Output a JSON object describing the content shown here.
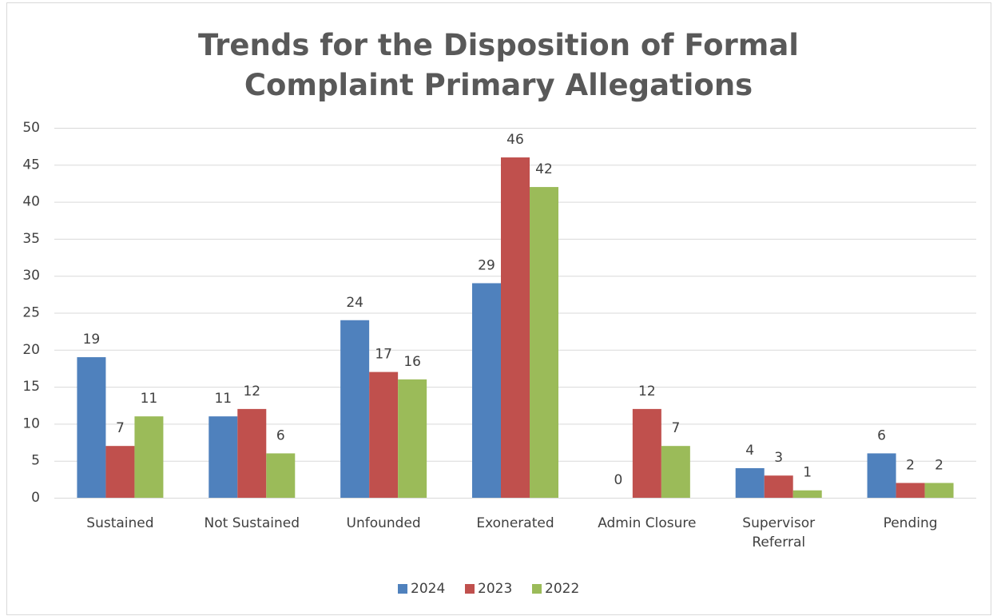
{
  "chart_data": {
    "type": "bar",
    "title": "Trends for the Disposition of Formal Complaint Primary Allegations",
    "categories": [
      "Sustained",
      "Not Sustained",
      "Unfounded",
      "Exonerated",
      "Admin Closure",
      "Supervisor Referral",
      "Pending"
    ],
    "series": [
      {
        "name": "2024",
        "color": "#4f81bd",
        "values": [
          19,
          11,
          24,
          29,
          0,
          4,
          6
        ]
      },
      {
        "name": "2023",
        "color": "#c0504d",
        "values": [
          7,
          12,
          17,
          46,
          12,
          3,
          2
        ]
      },
      {
        "name": "2022",
        "color": "#9bbb59",
        "values": [
          11,
          6,
          16,
          42,
          7,
          1,
          2
        ]
      }
    ],
    "ylim": [
      0,
      50
    ],
    "yticks": [
      0,
      5,
      10,
      15,
      20,
      25,
      30,
      35,
      40,
      45,
      50
    ],
    "grid": true,
    "legend": "bottom"
  }
}
